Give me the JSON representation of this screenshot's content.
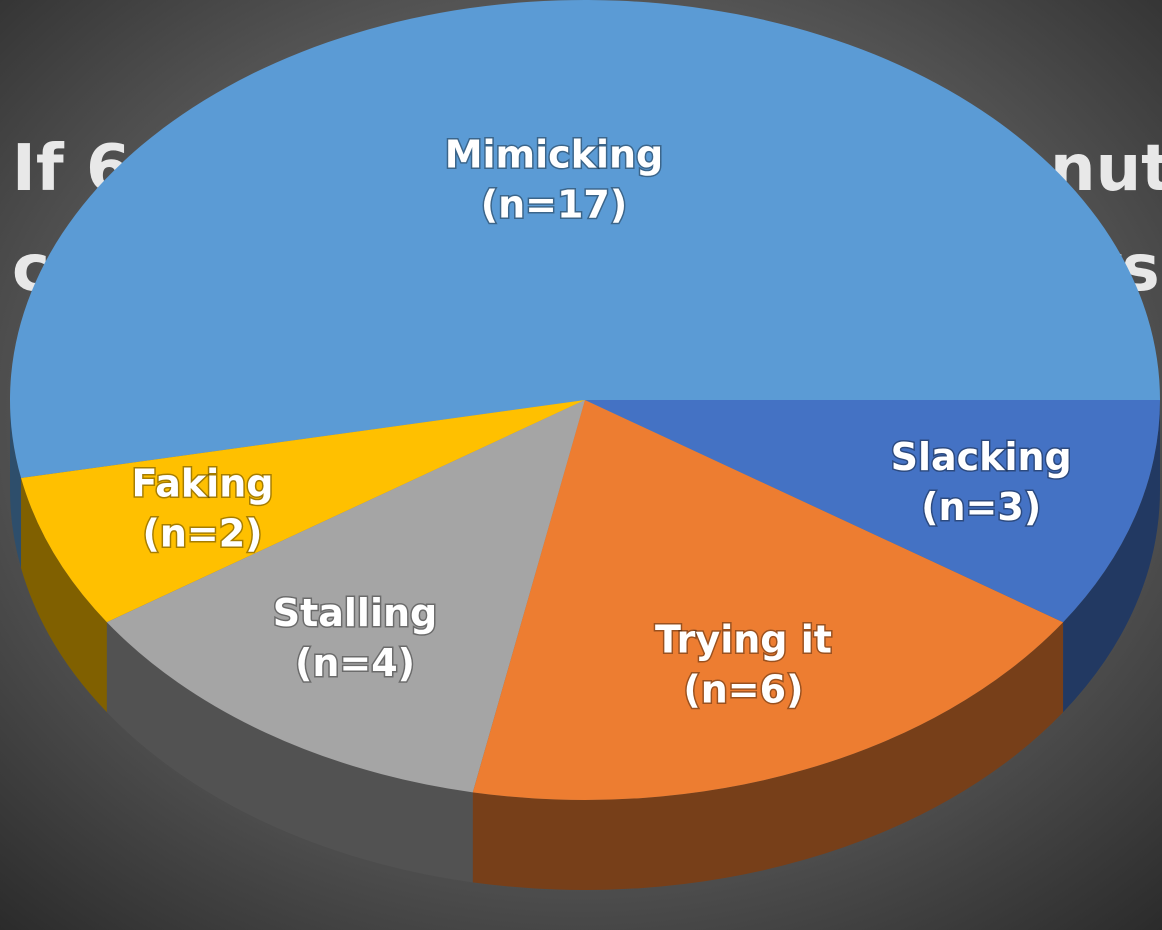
{
  "background_text": [
    "If 6",
    "nut",
    "c",
    "rs"
  ],
  "chart_data": {
    "type": "pie",
    "categories": [
      "Mimicking",
      "Faking",
      "Stalling",
      "Trying it",
      "Slacking"
    ],
    "values": [
      17,
      2,
      4,
      6,
      3
    ],
    "value_labels": [
      "(n=17)",
      "(n=2)",
      "(n=4)",
      "(n=6)",
      "(n=3)"
    ],
    "colors": [
      "#5b9bd5",
      "#ffc000",
      "#a5a5a5",
      "#ed7d31",
      "#4472c4"
    ]
  }
}
